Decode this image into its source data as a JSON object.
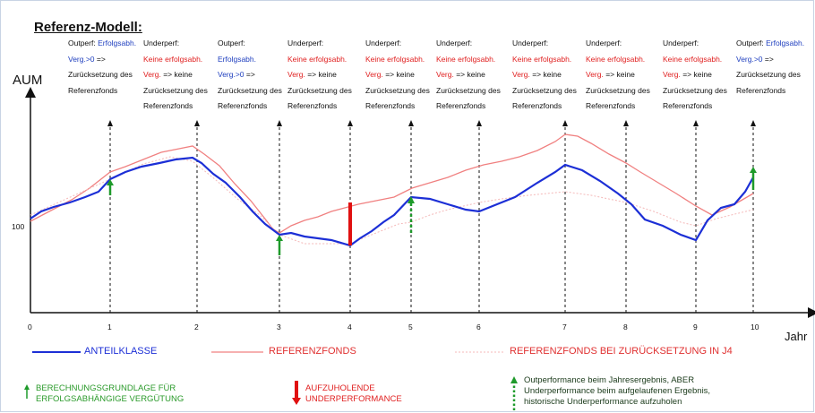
{
  "title": "Referenz-Modell:",
  "axis": {
    "y_label": "AUM",
    "x_label": "Jahr",
    "y_tick": "100",
    "x_ticks": [
      "0",
      "1",
      "2",
      "3",
      "4",
      "5",
      "6",
      "7",
      "8",
      "9",
      "10"
    ]
  },
  "annotations": [
    {
      "lines": [
        {
          "t": "Outperf: ",
          "c": "k",
          "t2": "Erfolgsabh.",
          "c2": "b"
        },
        {
          "t": "Verg.>0",
          "c": "b",
          "t2": " =>",
          "c2": "k"
        },
        {
          "t": "Zurücksetzung des",
          "c": "k"
        },
        {
          "t": "Referenzfonds",
          "c": "k"
        }
      ]
    },
    {
      "lines": [
        {
          "t": "Underperf:",
          "c": "k"
        },
        {
          "t": "Keine erfolgsabh.",
          "c": "r"
        },
        {
          "t": "Verg.",
          "c": "r",
          "t2": " => keine",
          "c2": "k"
        },
        {
          "t": "Zurücksetzung des",
          "c": "k"
        },
        {
          "t": "Referenzfonds",
          "c": "k"
        }
      ]
    },
    {
      "lines": [
        {
          "t": "Outperf:",
          "c": "k"
        },
        {
          "t": "Erfolgsabh.",
          "c": "b"
        },
        {
          "t": "Verg.>0",
          "c": "b",
          "t2": " =>",
          "c2": "k"
        },
        {
          "t": "Zurücksetzung des",
          "c": "k"
        },
        {
          "t": "Referenzfonds",
          "c": "k"
        }
      ]
    },
    {
      "lines": [
        {
          "t": "Underperf:",
          "c": "k"
        },
        {
          "t": "Keine erfolgsabh.",
          "c": "r"
        },
        {
          "t": "Verg.",
          "c": "r",
          "t2": " => keine",
          "c2": "k"
        },
        {
          "t": "Zurücksetzung des",
          "c": "k"
        },
        {
          "t": "Referenzfonds",
          "c": "k"
        }
      ]
    },
    {
      "lines": [
        {
          "t": "Underperf:",
          "c": "k"
        },
        {
          "t": "Keine erfolgsabh.",
          "c": "r"
        },
        {
          "t": "Verg.",
          "c": "r",
          "t2": " => keine",
          "c2": "k"
        },
        {
          "t": "Zurücksetzung des",
          "c": "k"
        },
        {
          "t": "Referenzfonds",
          "c": "k"
        }
      ]
    },
    {
      "lines": [
        {
          "t": "Underperf:",
          "c": "k"
        },
        {
          "t": "Keine erfolgsabh.",
          "c": "r"
        },
        {
          "t": "Verg.",
          "c": "r",
          "t2": " => keine",
          "c2": "k"
        },
        {
          "t": "Zurücksetzung des",
          "c": "k"
        },
        {
          "t": "Referenzfonds",
          "c": "k"
        }
      ]
    },
    {
      "lines": [
        {
          "t": "Underperf:",
          "c": "k"
        },
        {
          "t": "Keine erfolgsabh.",
          "c": "r"
        },
        {
          "t": "Verg.",
          "c": "r",
          "t2": " => keine",
          "c2": "k"
        },
        {
          "t": "Zurücksetzung des",
          "c": "k"
        },
        {
          "t": "Referenzfonds",
          "c": "k"
        }
      ]
    },
    {
      "lines": [
        {
          "t": "Underperf:",
          "c": "k"
        },
        {
          "t": "Keine erfolgsabh.",
          "c": "r"
        },
        {
          "t": "Verg.",
          "c": "r",
          "t2": " => keine",
          "c2": "k"
        },
        {
          "t": "Zurücksetzung des",
          "c": "k"
        },
        {
          "t": "Referenzfonds",
          "c": "k"
        }
      ]
    },
    {
      "lines": [
        {
          "t": "Underperf:",
          "c": "k"
        },
        {
          "t": "Keine erfolgsabh.",
          "c": "r"
        },
        {
          "t": "Verg.",
          "c": "r",
          "t2": " => keine",
          "c2": "k"
        },
        {
          "t": "Zurücksetzung des",
          "c": "k"
        },
        {
          "t": "Referenzfonds",
          "c": "k"
        }
      ]
    },
    {
      "lines": [
        {
          "t": "Outperf: ",
          "c": "k",
          "t2": "Erfolgsabh.",
          "c2": "b"
        },
        {
          "t": "Verg.>0",
          "c": "b",
          "t2": " =>",
          "c2": "k"
        },
        {
          "t": "Zurücksetzung des",
          "c": "k"
        },
        {
          "t": "Referenzfonds",
          "c": "k"
        }
      ]
    }
  ],
  "legend": {
    "series1": "ANTEILKLASSE",
    "series2": "REFERENZFONDS",
    "series3": "REFERENZFONDS BEI ZURÜCKSETZUNG IN J4"
  },
  "footnotes": {
    "green_arrow": [
      "BERECHNUNGSGRUNDLAGE FÜR",
      "ERFOLGSABHÄNGIGE VERGÜTUNG"
    ],
    "red_bar": [
      "AUFZUHOLENDE",
      "UNDERPERFORMANCE"
    ],
    "dotted_arrow": [
      "Outperformance beim Jahresergebnis, ABER",
      "Underperformance beim aufgelaufenen Ergebnis,",
      "historische Underperformance aufzuholen"
    ]
  },
  "colors": {
    "anteilklasse": "#1c2fd6",
    "referenzfonds": "#f08080",
    "reset": "#f4b8b8",
    "green": "#1e9a2a",
    "red": "#e01010",
    "axis": "#111111"
  }
}
